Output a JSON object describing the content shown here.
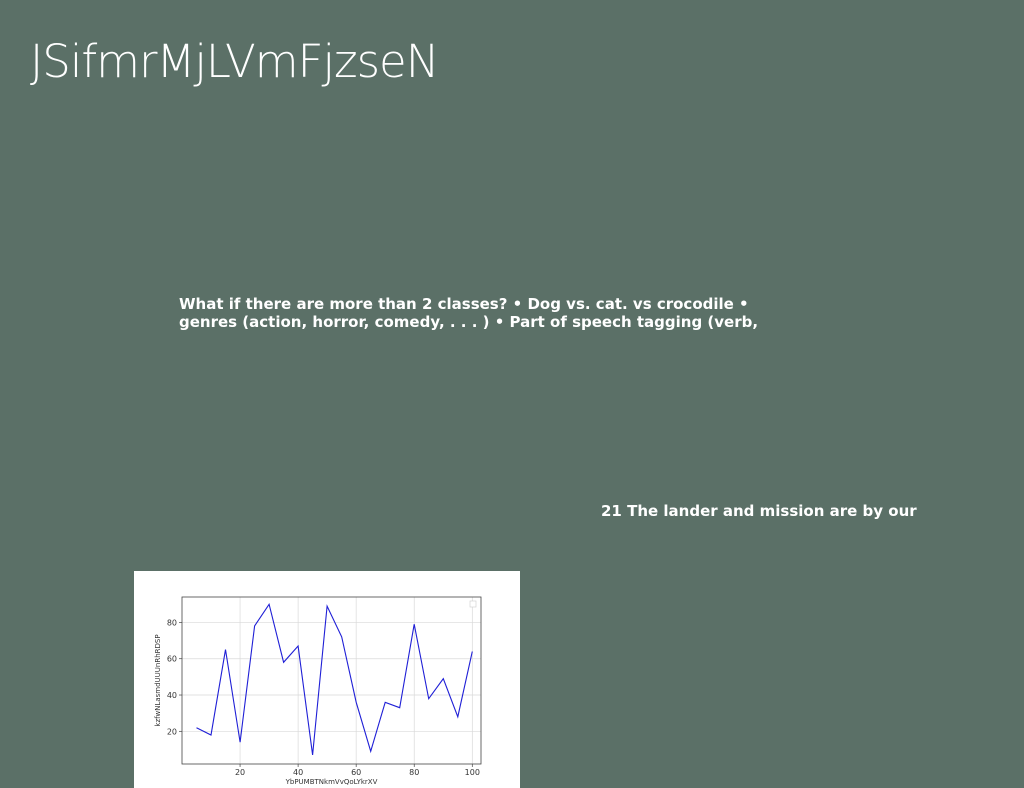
{
  "slide": {
    "title": "JSifmrMjLVmFjzseN",
    "body_lines": [
      "What if there are more than 2 classes? • Dog vs. cat. vs crocodile •",
      "genres (action, horror, comedy, . . . ) • Part of speech tagging (verb,"
    ],
    "caption": "21 The lander and mission are by our"
  },
  "colors": {
    "background": "#5b7067",
    "text": "#ffffff",
    "line": "#1f1fd6"
  },
  "chart_data": {
    "type": "line",
    "xlabel": "YbPUMBTNkmVvQoLYkrXV",
    "ylabel": "kzfwNLasmdUUUnRhRDSP",
    "xlim": [
      0,
      103
    ],
    "ylim": [
      2,
      94
    ],
    "xticks": [
      20,
      40,
      60,
      80,
      100
    ],
    "yticks": [
      20,
      40,
      60,
      80
    ],
    "grid": true,
    "legend": "top-right",
    "series": [
      {
        "x": [
          5,
          10,
          15,
          20,
          25,
          30,
          35,
          40,
          45,
          50,
          55,
          60,
          65,
          70,
          75,
          80,
          85,
          90,
          95,
          100
        ],
        "y": [
          22,
          18,
          65,
          14,
          78,
          90,
          58,
          67,
          7,
          89,
          72,
          36,
          9,
          36,
          33,
          79,
          38,
          49,
          28,
          64
        ]
      }
    ]
  }
}
